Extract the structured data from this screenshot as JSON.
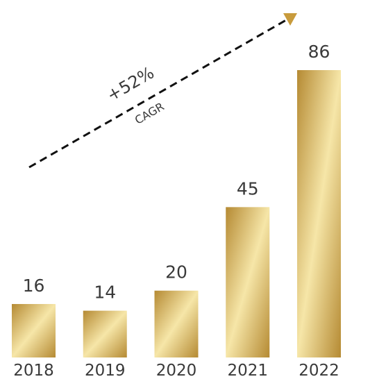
{
  "chart_data": {
    "type": "bar",
    "categories": [
      "2018",
      "2019",
      "2020",
      "2021",
      "2022"
    ],
    "values": [
      16,
      14,
      20,
      45,
      86
    ],
    "title": "",
    "xlabel": "",
    "ylabel": "",
    "ylim": [
      0,
      86
    ],
    "grid": false,
    "annotation": {
      "value": "+52%",
      "label": "CAGR"
    },
    "colors": {
      "bar_dark": "#b58a33",
      "bar_light": "#f6e6a8",
      "arrow": "#c89b3c",
      "line": "#111111",
      "text": "#3a3a3a"
    }
  }
}
